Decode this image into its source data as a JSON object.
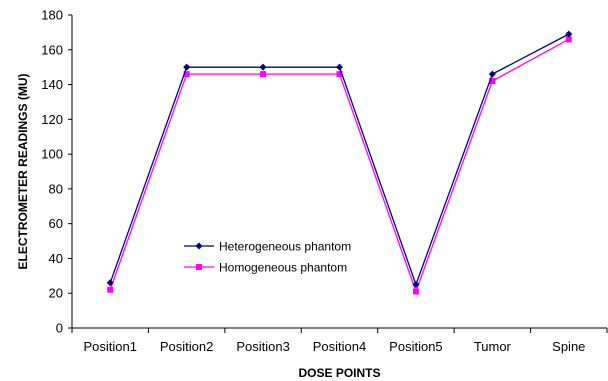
{
  "chart_data": {
    "type": "line",
    "title": "",
    "xlabel": "DOSE POINTS",
    "ylabel": "ELECTROMETER READINGS (MU)",
    "categories": [
      "Position1",
      "Position2",
      "Position3",
      "Position4",
      "Position5",
      "Tumor",
      "Spine"
    ],
    "ylim": [
      0,
      180
    ],
    "yticks": [
      0,
      20,
      40,
      60,
      80,
      100,
      120,
      140,
      160,
      180
    ],
    "grid": false,
    "legend_position": "center-left",
    "series": [
      {
        "name": "Heterogeneous phantom",
        "color": "#000080",
        "marker": "diamond",
        "values": [
          26,
          150,
          150,
          150,
          25,
          146,
          169
        ]
      },
      {
        "name": "Homogeneous phantom",
        "color": "#ff00ff",
        "marker": "square",
        "values": [
          22,
          146,
          146,
          146,
          21,
          142,
          166
        ]
      }
    ]
  }
}
